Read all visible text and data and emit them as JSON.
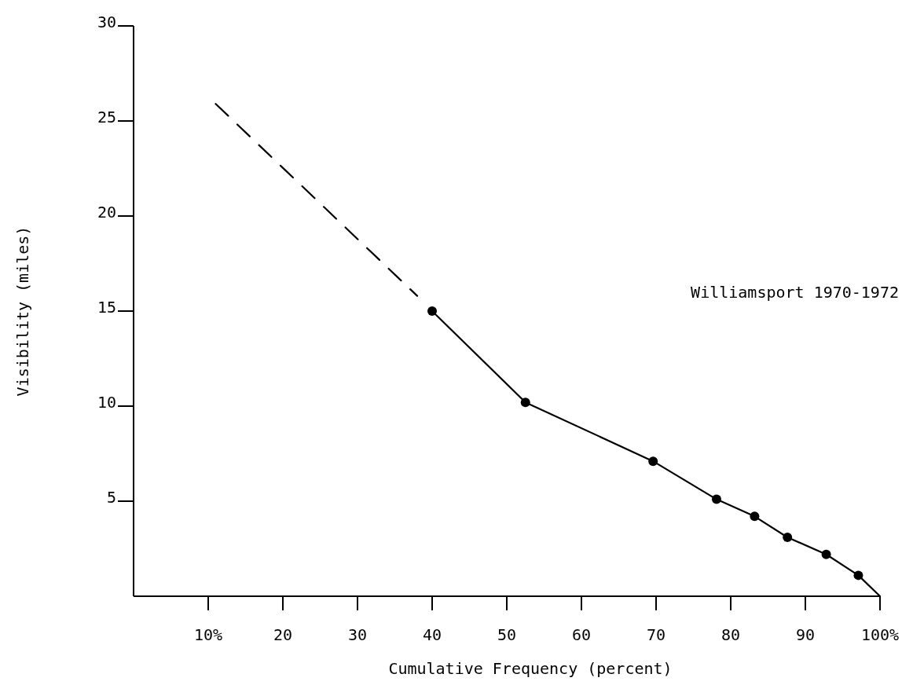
{
  "chart_data": {
    "type": "line",
    "xlabel": "Cumulative Frequency (percent)",
    "ylabel": "Visibility (miles)",
    "xlim": [
      0,
      100
    ],
    "ylim": [
      0,
      30
    ],
    "xticks": [
      {
        "value": 10,
        "label": "10%"
      },
      20,
      30,
      40,
      50,
      60,
      70,
      80,
      90,
      {
        "value": 100,
        "label": "100%"
      }
    ],
    "yticks": [
      5,
      10,
      15,
      20,
      25,
      30
    ],
    "grid": false,
    "annotations": [
      "Williamsport 1970-1972"
    ],
    "series": [
      {
        "color": "#000000",
        "x": [
          40,
          52.5,
          69.6,
          78.1,
          83.2,
          87.6,
          92.8,
          97.1,
          100
        ],
        "values": [
          15,
          10.2,
          7.1,
          5.1,
          4.2,
          3.1,
          2.2,
          1.1,
          0
        ],
        "marker": "circle",
        "line_style": "solid"
      },
      {
        "color": "#000000",
        "x": [
          11,
          38
        ],
        "values": [
          25.9,
          15.8
        ],
        "marker": "none",
        "line_style": "dashed"
      }
    ]
  }
}
